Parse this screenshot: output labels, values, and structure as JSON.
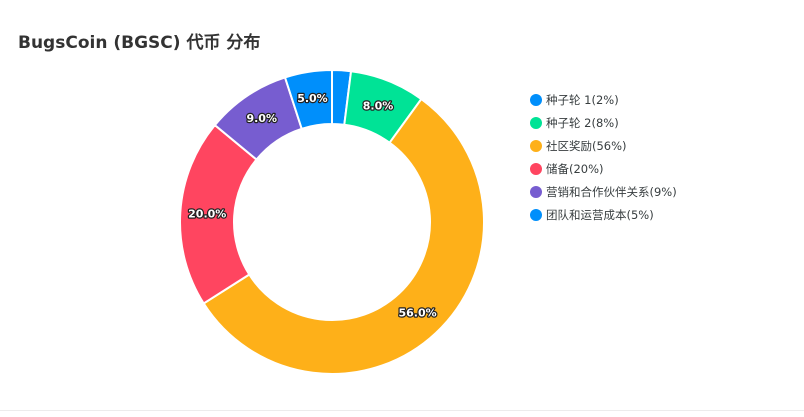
{
  "chart_data": {
    "type": "pie",
    "donut": true,
    "title": "BugsCoin (BGSC) 代币 分布",
    "categories": [
      "种子轮 1",
      "种子轮 2",
      "社区奖励",
      "储备",
      "营销和合作伙伴关系",
      "团队和运营成本"
    ],
    "values": [
      2,
      8,
      56,
      20,
      9,
      5
    ],
    "unit": "%",
    "data_labels": [
      "",
      "8.0%",
      "56.0%",
      "20.0%",
      "9.0%",
      "5.0%"
    ],
    "colors": [
      "#008FFB",
      "#00E396",
      "#FEB019",
      "#FF4560",
      "#775DD0",
      "#008FFB"
    ],
    "legend_position": "right",
    "legend": {
      "entries": [
        "种子轮 1(2%)",
        "种子轮 2(8%)",
        "社区奖励(56%)",
        "储备(20%)",
        "营销和合作伙伴关系(9%)",
        "团队和运营成本(5%)"
      ]
    }
  }
}
